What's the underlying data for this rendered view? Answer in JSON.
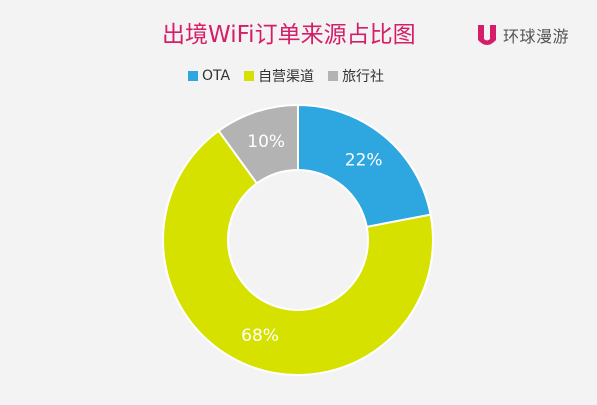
{
  "title": "出境WiFi订单来源占比图",
  "brand": {
    "name": "环球漫游",
    "color": "#d41e6a"
  },
  "chart_data": {
    "type": "pie",
    "title": "出境WiFi订单来源占比图",
    "legend_position": "top",
    "donut": true,
    "series": [
      {
        "name": "OTA",
        "value": 22,
        "label": "22%",
        "color": "#2ea6e0"
      },
      {
        "name": "自营渠道",
        "value": 68,
        "label": "68%",
        "color": "#d7e100"
      },
      {
        "name": "旅行社",
        "value": 10,
        "label": "10%",
        "color": "#b3b3b3"
      }
    ]
  }
}
